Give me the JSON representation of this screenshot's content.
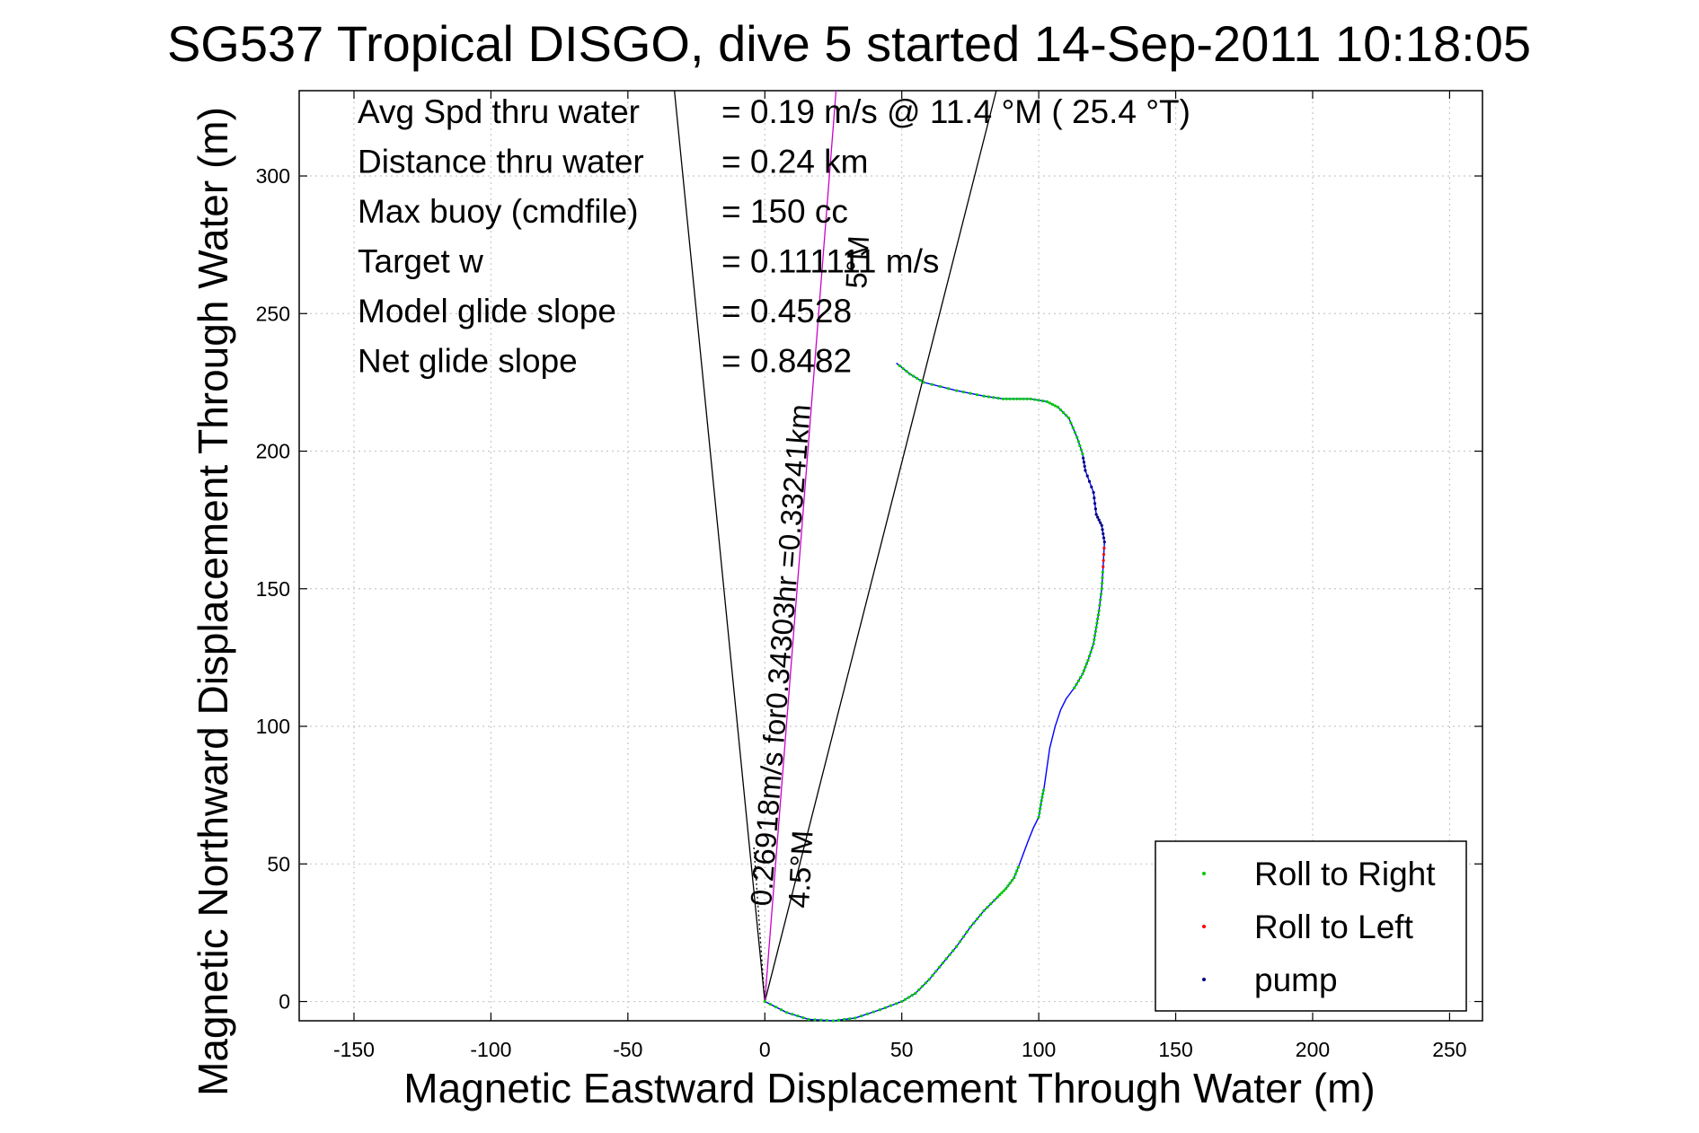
{
  "chart_data": {
    "type": "line",
    "title": "SG537 Tropical DISGO, dive 5 started 14-Sep-2011 10:18:05",
    "xlabel": "Magnetic Eastward Displacement Through Water (m)",
    "ylabel": "Magnetic Northward Displacement Through Water (m)",
    "xlim": [
      -170,
      262
    ],
    "ylim": [
      -7,
      331
    ],
    "xticks": [
      -150,
      -100,
      -50,
      0,
      50,
      100,
      150,
      200,
      250
    ],
    "yticks": [
      0,
      50,
      100,
      150,
      200,
      250,
      300
    ],
    "grid": true,
    "legend_position": "bottom-right",
    "legend": [
      {
        "name": "Roll to Right",
        "color": "#00cc00"
      },
      {
        "name": "Roll to Left",
        "color": "#ff0000"
      },
      {
        "name": "pump",
        "color": "#000080"
      }
    ],
    "track_color": "#0000ff",
    "info": [
      {
        "label": "Avg Spd thru water",
        "value": "=  0.19 m/s @  11.4 °M ( 25.4 °T)"
      },
      {
        "label": "Distance thru water",
        "value": "=  0.24 km"
      },
      {
        "label": "Max buoy (cmdfile)",
        "value": "= 150 cc"
      },
      {
        "label": "Target w",
        "value": "= 0.111111 m/s"
      },
      {
        "label": "Model glide slope",
        "value": "= 0.4528"
      },
      {
        "label": "Net glide slope",
        "value": "= 0.8482"
      }
    ],
    "annotations": [
      {
        "text": "0.26918m/s for0.34303hr =0.33241km",
        "color": "#000000"
      },
      {
        "text": "4.5°M",
        "color": "#000000"
      },
      {
        "text": "5°M",
        "color": "#000000"
      }
    ],
    "reference_lines": [
      {
        "name": "bracket-left",
        "color": "#000000",
        "x": [
          0,
          -33
        ],
        "y": [
          0,
          331
        ]
      },
      {
        "name": "bracket-right",
        "color": "#000000",
        "x": [
          0,
          84.5
        ],
        "y": [
          0,
          331
        ]
      },
      {
        "name": "heading-line",
        "color": "#cc00cc",
        "x": [
          0,
          26
        ],
        "y": [
          0,
          331
        ]
      },
      {
        "name": "heading-line-dotted",
        "color": "#000000",
        "x": [
          0,
          -4
        ],
        "y": [
          0,
          56
        ]
      }
    ],
    "series": [
      {
        "name": "track",
        "x": [
          0,
          8,
          16,
          25,
          33,
          42,
          50,
          55,
          60,
          65,
          70,
          75,
          80,
          85,
          88,
          91,
          93,
          96,
          98,
          100,
          101,
          102,
          103,
          104,
          106,
          108,
          110,
          113,
          116,
          118,
          120,
          121,
          122,
          123,
          123.5,
          124,
          123,
          121,
          120,
          117,
          116,
          114,
          111,
          107,
          103,
          97,
          92,
          87,
          80,
          70,
          58,
          53,
          48
        ],
        "y": [
          0,
          -4,
          -6.5,
          -7,
          -6,
          -3,
          0,
          3,
          8,
          14,
          20,
          27,
          33,
          38,
          41,
          45,
          50,
          58,
          63,
          67,
          73,
          78,
          85,
          92,
          100,
          106,
          110,
          114,
          119,
          124,
          130,
          136,
          142,
          150,
          158,
          167,
          173,
          177,
          185,
          193,
          199,
          205,
          212,
          216,
          218,
          219,
          219,
          219,
          220,
          222,
          225,
          228,
          232
        ],
        "roll": [
          "R",
          "R",
          "R",
          "R",
          "R",
          "R",
          "R",
          "R",
          "R",
          "R",
          "R",
          "R",
          "R",
          "R",
          "R",
          "R",
          "N",
          "N",
          "N",
          "R",
          "R",
          "N",
          "N",
          "N",
          "N",
          "N",
          "N",
          "R",
          "R",
          "R",
          "R",
          "R",
          "R",
          "R",
          "L",
          "P",
          "P",
          "P",
          "P",
          "P",
          "R",
          "R",
          "R",
          "R",
          "R",
          "R",
          "R",
          "R",
          "R",
          "R",
          "R",
          "R",
          "R"
        ]
      }
    ]
  }
}
